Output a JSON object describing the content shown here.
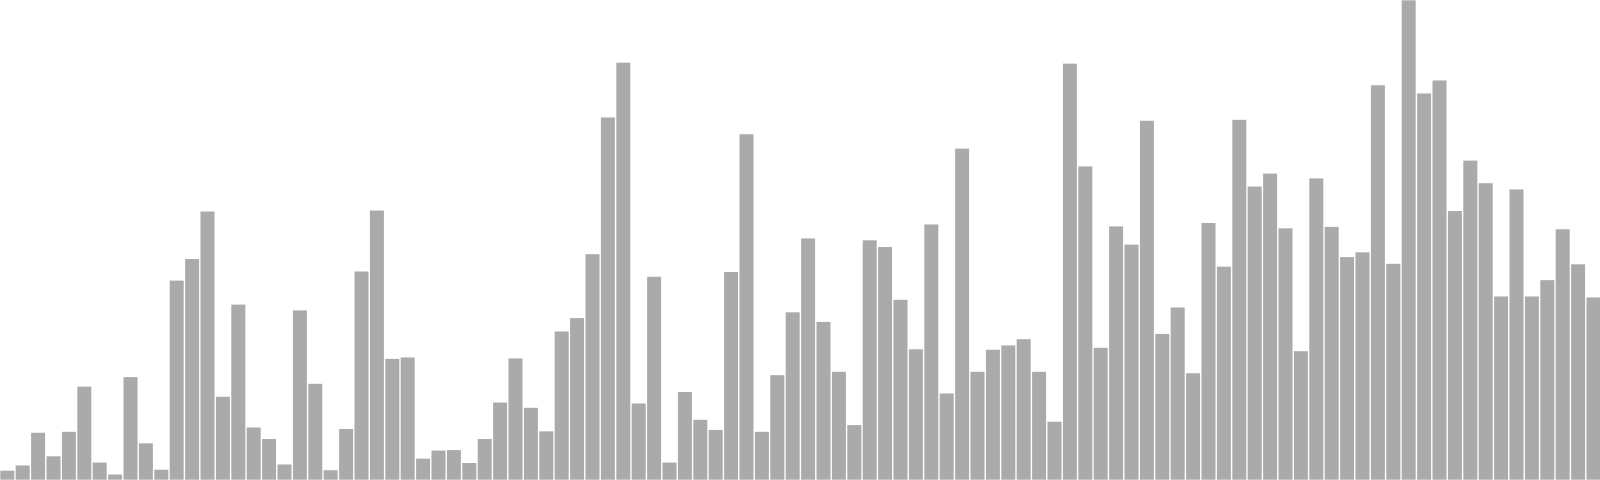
{
  "chart_data": {
    "type": "bar",
    "title": "",
    "xlabel": "",
    "ylabel": "",
    "ylim": [
      0,
      100
    ],
    "grid": false,
    "legend": "none",
    "bar_color": "#aaaaaa",
    "bar_edge_color": "#ffffff",
    "values": [
      2.0,
      3.1,
      9.9,
      5.0,
      10.1,
      19.5,
      3.7,
      1.2,
      21.5,
      7.7,
      2.2,
      41.6,
      46.1,
      56.0,
      17.4,
      36.6,
      11.0,
      8.6,
      3.3,
      35.4,
      20.1,
      2.1,
      10.7,
      43.5,
      56.2,
      25.3,
      25.6,
      4.5,
      6.2,
      6.3,
      3.6,
      8.6,
      16.2,
      25.4,
      15.1,
      10.2,
      31.0,
      33.8,
      47.1,
      75.6,
      87.0,
      16.0,
      42.4,
      3.7,
      18.4,
      12.6,
      10.5,
      43.4,
      72.1,
      10.1,
      21.9,
      35.0,
      50.4,
      33.0,
      22.6,
      11.5,
      50.0,
      48.6,
      37.6,
      27.3,
      53.3,
      18.1,
      69.1,
      22.6,
      27.2,
      28.1,
      29.4,
      22.6,
      12.2,
      86.8,
      65.4,
      27.6,
      52.9,
      49.1,
      74.9,
      30.5,
      36.0,
      22.3,
      53.6,
      44.5,
      75.1,
      61.2,
      63.9,
      52.5,
      26.9,
      62.9,
      52.8,
      46.5,
      47.5,
      82.3,
      45.1,
      100.0,
      80.6,
      83.3,
      56.1,
      66.6,
      61.9,
      38.3,
      60.6,
      38.3,
      41.7,
      52.3,
      45.0,
      38.1
    ]
  }
}
